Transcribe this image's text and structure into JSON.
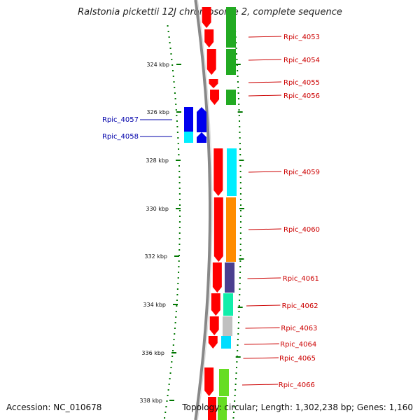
{
  "title": "Ralstonia pickettii 12J chromosome 2, complete sequence",
  "footer": {
    "accession": "Accession: NC_010678",
    "topology": "Topology: circular; Length: 1,302,238 bp; Genes: 1,160"
  },
  "scale": {
    "unit": "kbp",
    "ticks": [
      "324 kbp",
      "326 kbp",
      "328 kbp",
      "330 kbp",
      "332 kbp",
      "334 kbp",
      "336 kbp",
      "338 kbp"
    ]
  },
  "genes_forward": [
    {
      "label": "Rpic_4053",
      "cog_color": "#22aa22"
    },
    {
      "label": "Rpic_4054",
      "cog_color": "#22aa22"
    },
    {
      "label": "Rpic_4055",
      "cog_color": "#ffffff"
    },
    {
      "label": "Rpic_4056",
      "cog_color": "#22aa22"
    },
    {
      "label": "Rpic_4059",
      "cog_color": "#00eeff"
    },
    {
      "label": "Rpic_4060",
      "cog_color": "#ff8c00"
    },
    {
      "label": "Rpic_4061",
      "cog_color": "#4b3f8f"
    },
    {
      "label": "Rpic_4062",
      "cog_color": "#11eeaa"
    },
    {
      "label": "Rpic_4063",
      "cog_color": "#c0c0c0"
    },
    {
      "label": "Rpic_4064",
      "cog_color": "#00ddff"
    },
    {
      "label": "Rpic_4065",
      "cog_color": "#ffffff"
    },
    {
      "label": "Rpic_4066",
      "cog_color": "#66dd22"
    }
  ],
  "genes_reverse": [
    {
      "label": "Rpic_4057",
      "cog_color": "#0000ff"
    },
    {
      "label": "Rpic_4058",
      "cog_color": "#00eeff"
    }
  ],
  "colors": {
    "forward_strand": "#ff0000",
    "reverse_strand": "#0000ee",
    "forward_label": "#cc0000",
    "reverse_label": "#0000aa",
    "backbone": "#888888",
    "tick": "#007700"
  }
}
